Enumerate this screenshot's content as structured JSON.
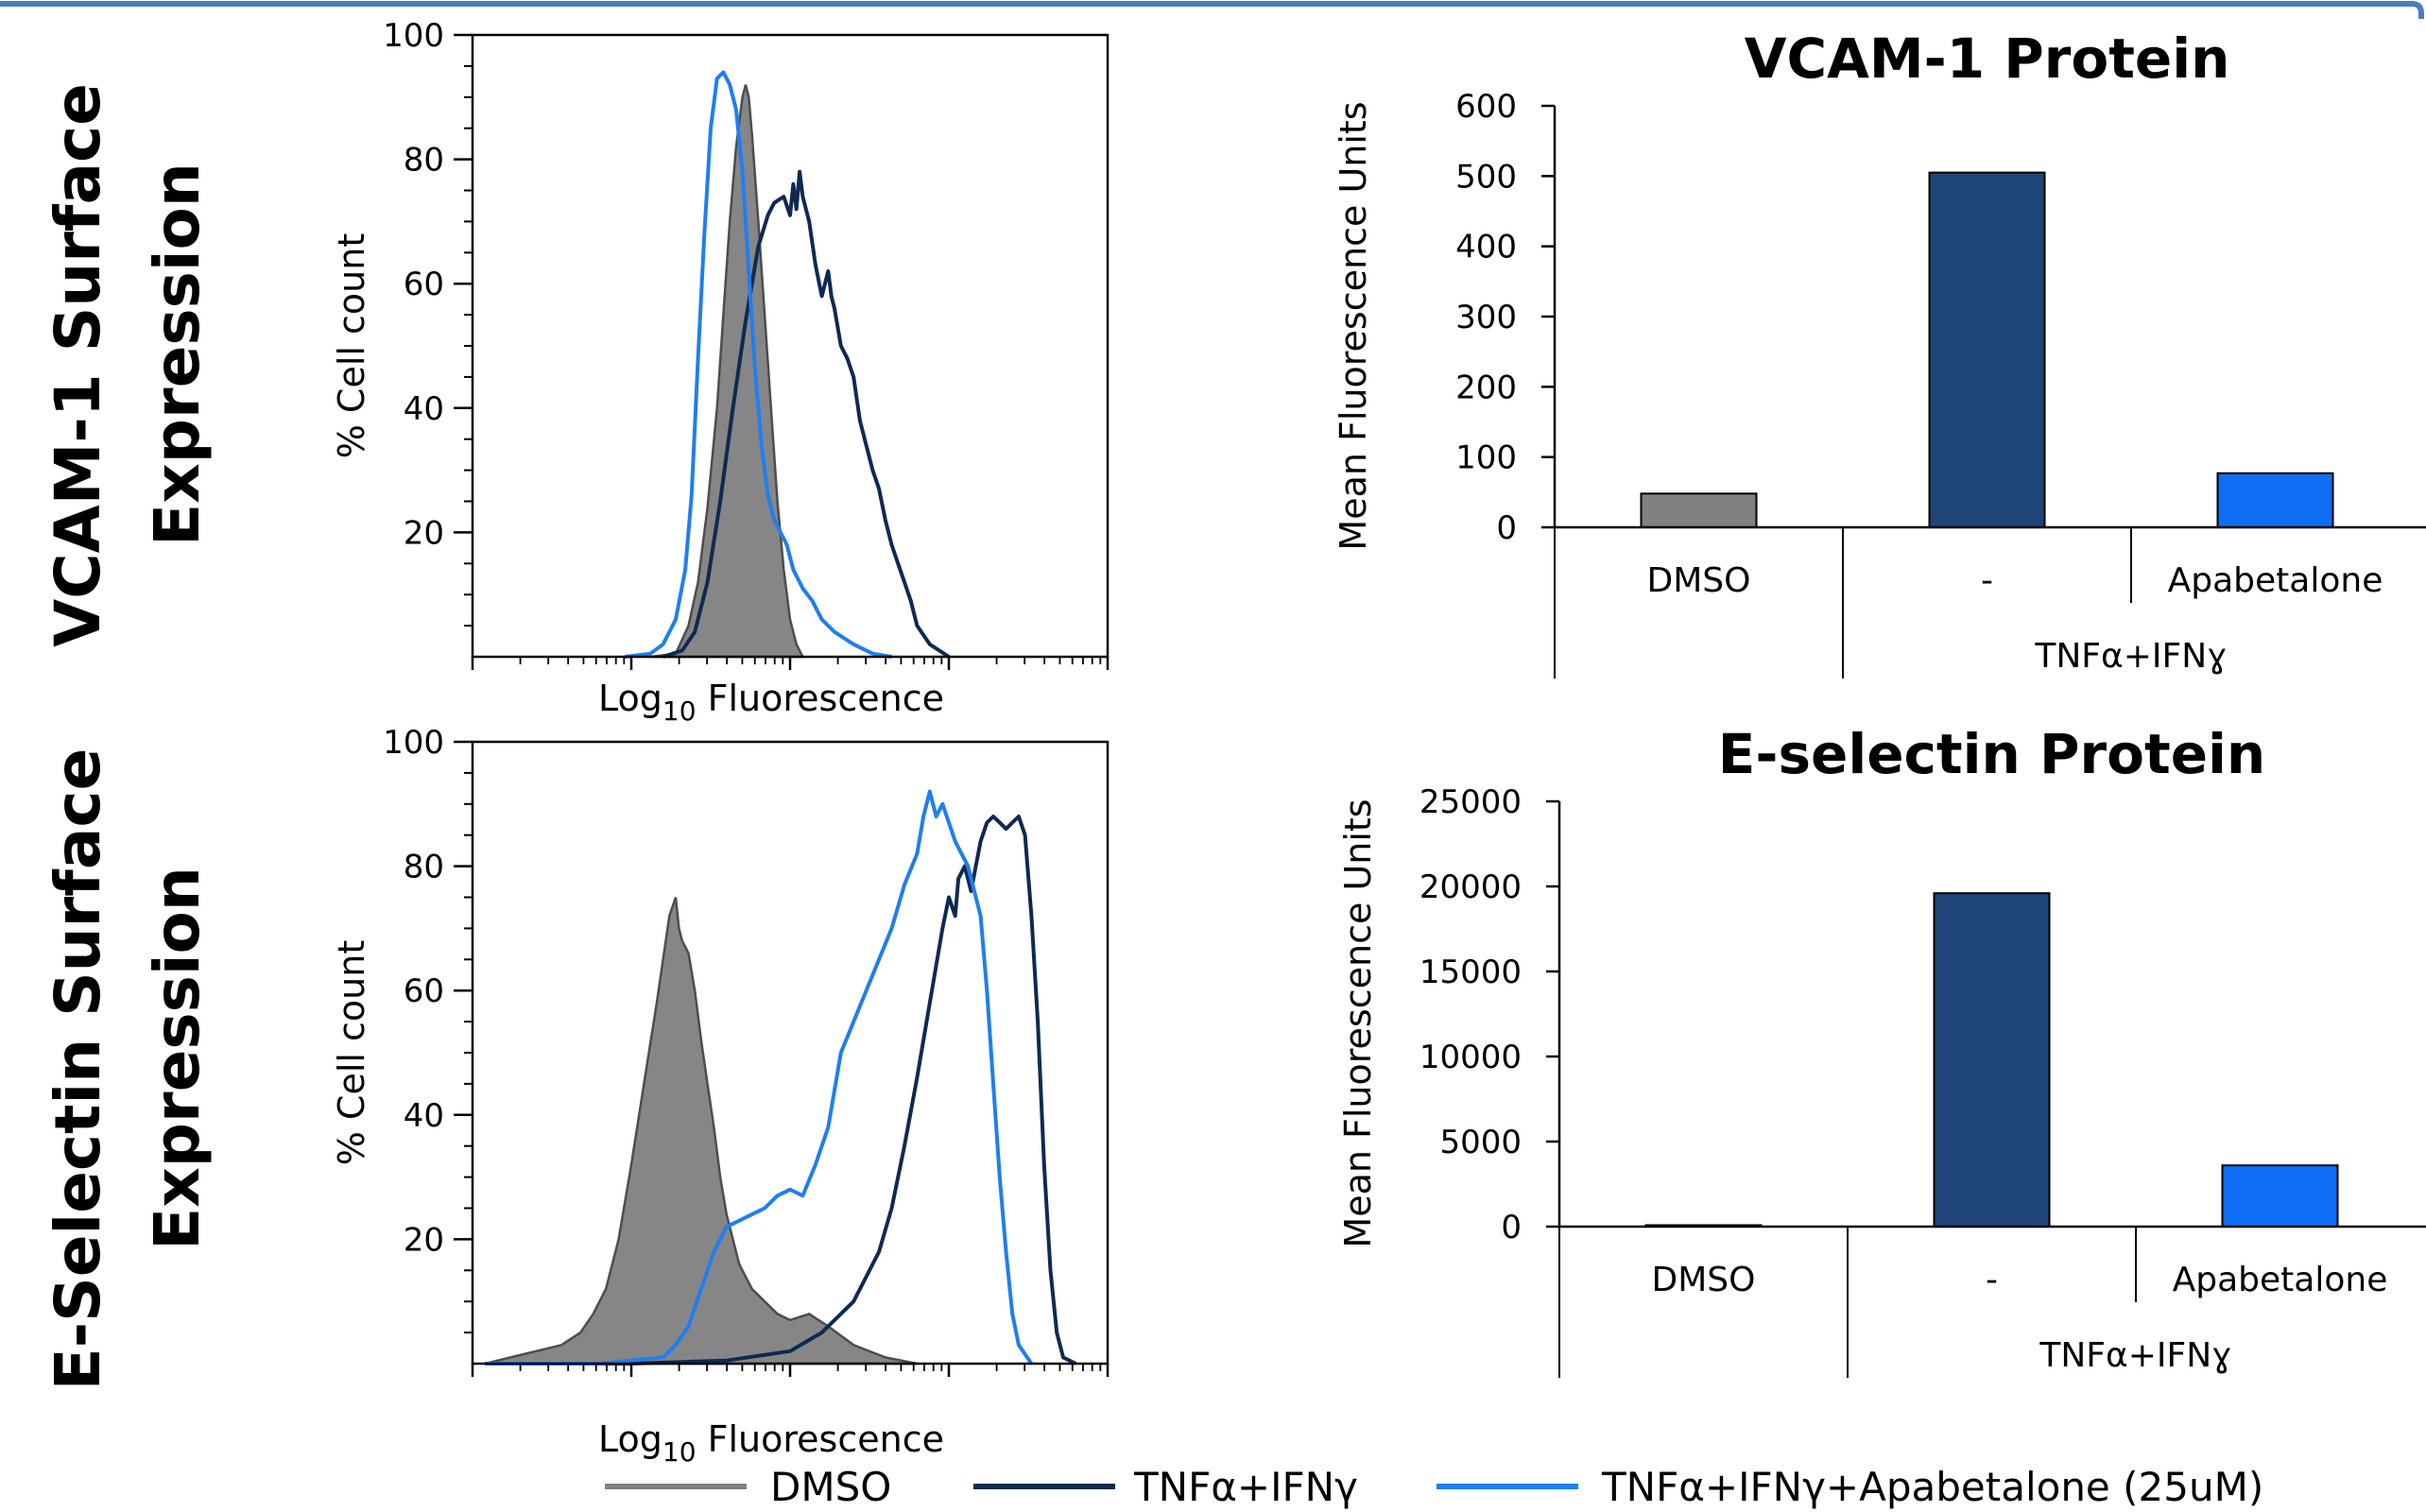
{
  "row_titles": {
    "vcam": [
      "VCAM-1 Surface",
      "Expression"
    ],
    "esel": [
      "E-Selectin Surface",
      "Expression"
    ]
  },
  "legend": [
    {
      "label": "DMSO",
      "color": "#808080"
    },
    {
      "label": "TNFα+IFNγ",
      "color": "#0d2a52"
    },
    {
      "label": "TNFα+IFNγ+Apabetalone (25uM)",
      "color": "#1f7ef0"
    }
  ],
  "colors": {
    "dmso": "#808080",
    "tnf": "#0d2a52",
    "apa": "#1f7ef0",
    "bar_tnf": "#1f4478",
    "bar_apa": "#0f6ef5"
  },
  "chart_data": [
    {
      "type": "line",
      "chart": "vcam-histogram",
      "xlabel_main": "Log",
      "xlabel_sub": "10",
      "xlabel_rest": " Fluorescence",
      "ylabel": "% Cell count",
      "yticks": [
        20,
        40,
        60,
        80,
        100
      ],
      "ylim": [
        0,
        100
      ],
      "xlim": [
        0,
        1
      ],
      "series": [
        {
          "key": "dmso",
          "fill": true,
          "points": [
            [
              0.28,
              0
            ],
            [
              0.32,
              0.5
            ],
            [
              0.34,
              5
            ],
            [
              0.355,
              12
            ],
            [
              0.37,
              24
            ],
            [
              0.385,
              40
            ],
            [
              0.395,
              55
            ],
            [
              0.405,
              70
            ],
            [
              0.415,
              82
            ],
            [
              0.425,
              90
            ],
            [
              0.43,
              92
            ],
            [
              0.435,
              90
            ],
            [
              0.44,
              84
            ],
            [
              0.45,
              70
            ],
            [
              0.46,
              55
            ],
            [
              0.47,
              40
            ],
            [
              0.48,
              25
            ],
            [
              0.49,
              14
            ],
            [
              0.5,
              6
            ],
            [
              0.51,
              2
            ],
            [
              0.52,
              0
            ]
          ]
        },
        {
          "key": "tnf",
          "fill": false,
          "points": [
            [
              0.3,
              0
            ],
            [
              0.33,
              1
            ],
            [
              0.35,
              4
            ],
            [
              0.37,
              12
            ],
            [
              0.39,
              25
            ],
            [
              0.41,
              40
            ],
            [
              0.43,
              54
            ],
            [
              0.45,
              66
            ],
            [
              0.465,
              71
            ],
            [
              0.475,
              73
            ],
            [
              0.49,
              74
            ],
            [
              0.5,
              71
            ],
            [
              0.505,
              76
            ],
            [
              0.51,
              72
            ],
            [
              0.515,
              78
            ],
            [
              0.52,
              74
            ],
            [
              0.53,
              70
            ],
            [
              0.54,
              63
            ],
            [
              0.55,
              58
            ],
            [
              0.56,
              62
            ],
            [
              0.565,
              58
            ],
            [
              0.57,
              56
            ],
            [
              0.58,
              50
            ],
            [
              0.59,
              48
            ],
            [
              0.6,
              45
            ],
            [
              0.61,
              38
            ],
            [
              0.62,
              34
            ],
            [
              0.63,
              30
            ],
            [
              0.64,
              27
            ],
            [
              0.65,
              22
            ],
            [
              0.66,
              18
            ],
            [
              0.67,
              15
            ],
            [
              0.68,
              12
            ],
            [
              0.69,
              9
            ],
            [
              0.7,
              5
            ],
            [
              0.72,
              2
            ],
            [
              0.75,
              0
            ]
          ]
        },
        {
          "key": "apa",
          "fill": false,
          "points": [
            [
              0.24,
              0
            ],
            [
              0.28,
              0.5
            ],
            [
              0.3,
              2
            ],
            [
              0.32,
              6
            ],
            [
              0.335,
              14
            ],
            [
              0.345,
              26
            ],
            [
              0.355,
              48
            ],
            [
              0.365,
              68
            ],
            [
              0.375,
              85
            ],
            [
              0.385,
              93
            ],
            [
              0.395,
              94
            ],
            [
              0.405,
              92
            ],
            [
              0.415,
              88
            ],
            [
              0.425,
              78
            ],
            [
              0.435,
              62
            ],
            [
              0.445,
              46
            ],
            [
              0.455,
              34
            ],
            [
              0.465,
              26
            ],
            [
              0.475,
              22
            ],
            [
              0.485,
              20
            ],
            [
              0.495,
              18
            ],
            [
              0.505,
              14
            ],
            [
              0.52,
              11
            ],
            [
              0.535,
              9
            ],
            [
              0.55,
              6
            ],
            [
              0.57,
              4
            ],
            [
              0.6,
              2
            ],
            [
              0.63,
              0.5
            ],
            [
              0.66,
              0
            ]
          ]
        }
      ]
    },
    {
      "type": "bar",
      "chart": "vcam-bars",
      "title": "VCAM-1 Protein",
      "ylabel": "Mean Fluorescence Units",
      "categories": [
        "DMSO",
        "-",
        "Apabetalone"
      ],
      "group_label": "TNFα+IFNɣ",
      "values": [
        48,
        505,
        77
      ],
      "yticks": [
        0,
        100,
        200,
        300,
        400,
        500,
        600
      ],
      "ylim": [
        0,
        600
      ]
    },
    {
      "type": "line",
      "chart": "esel-histogram",
      "xlabel_main": "Log",
      "xlabel_sub": "10",
      "xlabel_rest": " Fluorescence",
      "ylabel": "% Cell count",
      "yticks": [
        20,
        40,
        60,
        80,
        100
      ],
      "ylim": [
        0,
        100
      ],
      "xlim": [
        0,
        1
      ],
      "series": [
        {
          "key": "dmso",
          "fill": true,
          "points": [
            [
              0.02,
              0
            ],
            [
              0.06,
              1
            ],
            [
              0.1,
              2
            ],
            [
              0.14,
              3
            ],
            [
              0.17,
              5
            ],
            [
              0.19,
              8
            ],
            [
              0.21,
              12
            ],
            [
              0.23,
              20
            ],
            [
              0.25,
              32
            ],
            [
              0.27,
              45
            ],
            [
              0.29,
              58
            ],
            [
              0.3,
              65
            ],
            [
              0.31,
              72
            ],
            [
              0.32,
              75
            ],
            [
              0.325,
              70
            ],
            [
              0.33,
              68
            ],
            [
              0.34,
              66
            ],
            [
              0.35,
              60
            ],
            [
              0.36,
              52
            ],
            [
              0.37,
              45
            ],
            [
              0.38,
              38
            ],
            [
              0.39,
              30
            ],
            [
              0.4,
              24
            ],
            [
              0.42,
              16
            ],
            [
              0.44,
              12
            ],
            [
              0.46,
              10
            ],
            [
              0.48,
              8
            ],
            [
              0.5,
              7
            ],
            [
              0.53,
              8
            ],
            [
              0.56,
              6
            ],
            [
              0.6,
              3
            ],
            [
              0.65,
              1
            ],
            [
              0.7,
              0
            ]
          ]
        },
        {
          "key": "tnf",
          "fill": false,
          "points": [
            [
              0.02,
              0
            ],
            [
              0.25,
              0
            ],
            [
              0.4,
              0.5
            ],
            [
              0.5,
              2
            ],
            [
              0.55,
              5
            ],
            [
              0.6,
              10
            ],
            [
              0.64,
              18
            ],
            [
              0.66,
              25
            ],
            [
              0.68,
              35
            ],
            [
              0.7,
              46
            ],
            [
              0.72,
              58
            ],
            [
              0.74,
              70
            ],
            [
              0.75,
              75
            ],
            [
              0.76,
              72
            ],
            [
              0.765,
              78
            ],
            [
              0.775,
              80
            ],
            [
              0.785,
              76
            ],
            [
              0.8,
              84
            ],
            [
              0.81,
              87
            ],
            [
              0.82,
              88
            ],
            [
              0.83,
              87
            ],
            [
              0.84,
              86
            ],
            [
              0.85,
              87
            ],
            [
              0.86,
              88
            ],
            [
              0.87,
              85
            ],
            [
              0.88,
              72
            ],
            [
              0.89,
              55
            ],
            [
              0.9,
              32
            ],
            [
              0.91,
              15
            ],
            [
              0.92,
              5
            ],
            [
              0.93,
              1
            ],
            [
              0.95,
              0
            ]
          ]
        },
        {
          "key": "apa",
          "fill": false,
          "points": [
            [
              0.02,
              0
            ],
            [
              0.2,
              0
            ],
            [
              0.3,
              1
            ],
            [
              0.32,
              3
            ],
            [
              0.34,
              6
            ],
            [
              0.36,
              12
            ],
            [
              0.38,
              18
            ],
            [
              0.4,
              22
            ],
            [
              0.42,
              23
            ],
            [
              0.44,
              24
            ],
            [
              0.46,
              25
            ],
            [
              0.48,
              27
            ],
            [
              0.5,
              28
            ],
            [
              0.52,
              27
            ],
            [
              0.54,
              32
            ],
            [
              0.56,
              38
            ],
            [
              0.58,
              50
            ],
            [
              0.6,
              55
            ],
            [
              0.62,
              60
            ],
            [
              0.64,
              65
            ],
            [
              0.66,
              70
            ],
            [
              0.68,
              77
            ],
            [
              0.7,
              82
            ],
            [
              0.71,
              88
            ],
            [
              0.72,
              92
            ],
            [
              0.73,
              88
            ],
            [
              0.74,
              90
            ],
            [
              0.75,
              87
            ],
            [
              0.76,
              84
            ],
            [
              0.78,
              80
            ],
            [
              0.8,
              72
            ],
            [
              0.81,
              60
            ],
            [
              0.82,
              45
            ],
            [
              0.83,
              30
            ],
            [
              0.84,
              18
            ],
            [
              0.85,
              8
            ],
            [
              0.86,
              3
            ],
            [
              0.88,
              0
            ]
          ]
        }
      ]
    },
    {
      "type": "bar",
      "chart": "esel-bars",
      "title": "E-selectin Protein",
      "ylabel": "Mean Fluorescence Units",
      "categories": [
        "DMSO",
        "-",
        "Apabetalone"
      ],
      "group_label": "TNFα+IFNɣ",
      "values": [
        40,
        19600,
        3600
      ],
      "yticks": [
        0,
        5000,
        10000,
        15000,
        20000,
        25000
      ],
      "ylim": [
        0,
        25000
      ]
    }
  ]
}
